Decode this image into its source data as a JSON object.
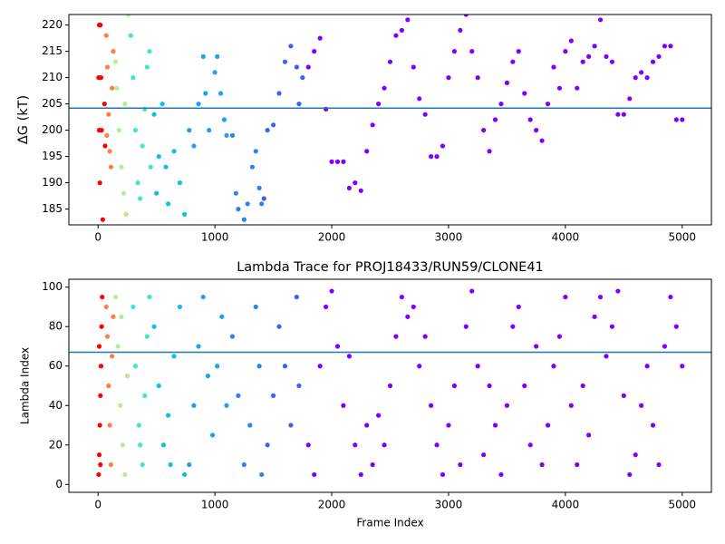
{
  "chart_data": [
    {
      "type": "scatter",
      "ylabel": "ΔG (kT)",
      "xlim": [
        -250,
        5250
      ],
      "xticks": [
        0,
        1000,
        2000,
        3000,
        4000,
        5000
      ],
      "ylim": [
        182,
        222
      ],
      "yticks": [
        185,
        190,
        195,
        200,
        205,
        210,
        215,
        220
      ],
      "hline": {
        "value": 204.2,
        "color": "#1f77b4"
      },
      "series": [
        {
          "color": "#ff0000",
          "x": [
            10,
            20,
            5,
            25,
            10,
            30,
            15,
            40,
            55,
            60
          ],
          "values": [
            220,
            220,
            210,
            210,
            200,
            200,
            190,
            183,
            205,
            197
          ]
        },
        {
          "color": "#ff7f40",
          "x": [
            70,
            80,
            90,
            100,
            110,
            120,
            130,
            75
          ],
          "values": [
            218,
            212,
            203,
            196,
            193,
            208,
            215,
            199
          ]
        },
        {
          "color": "#b0f090",
          "x": [
            150,
            160,
            180,
            200,
            220,
            240,
            260,
            230
          ],
          "values": [
            213,
            208,
            200,
            193,
            188,
            184,
            222,
            205
          ]
        },
        {
          "color": "#40e8c8",
          "x": [
            280,
            300,
            320,
            340,
            360,
            380,
            400,
            420,
            440,
            450
          ],
          "values": [
            218,
            210,
            200,
            190,
            187,
            197,
            204,
            212,
            215,
            193
          ]
        },
        {
          "color": "#10c0e0",
          "x": [
            480,
            500,
            520,
            550,
            580,
            600,
            650,
            700,
            740
          ],
          "values": [
            203,
            188,
            195,
            205,
            193,
            186,
            196,
            190,
            184
          ]
        },
        {
          "color": "#20a0f0",
          "x": [
            780,
            820,
            860,
            900,
            920,
            950,
            1000,
            1020,
            1050,
            1080,
            1100
          ],
          "values": [
            200,
            197,
            205,
            214,
            207,
            200,
            211,
            214,
            207,
            202,
            199
          ]
        },
        {
          "color": "#3080f0",
          "x": [
            1150,
            1180,
            1200,
            1250,
            1280,
            1320,
            1350,
            1380,
            1400
          ],
          "values": [
            199,
            188,
            185,
            183,
            186,
            193,
            196,
            189,
            186
          ]
        },
        {
          "color": "#4060f0",
          "x": [
            1420,
            1450,
            1500,
            1550,
            1600,
            1650,
            1700,
            1720,
            1750
          ],
          "values": [
            187,
            200,
            201,
            207,
            213,
            216,
            212,
            205,
            210
          ]
        },
        {
          "color": "#8000ff",
          "x": [
            1800,
            1850,
            1900,
            1950,
            2000,
            2050,
            2100,
            2150,
            2200,
            2250,
            2300,
            2350,
            2400,
            2450,
            2500,
            2550,
            2600,
            2650,
            2700,
            2750,
            2800,
            2850,
            2900,
            2950,
            3000,
            3050,
            3100,
            3150,
            3200,
            3250,
            3300,
            3350,
            3400,
            3450,
            3500,
            3550,
            3600,
            3650,
            3700,
            3750,
            3800,
            3850,
            3900,
            3950,
            4000,
            4050,
            4100,
            4150,
            4200,
            4250,
            4300,
            4350,
            4400,
            4450,
            4500,
            4550,
            4600,
            4650,
            4700,
            4750,
            4800,
            4850,
            4900,
            4950,
            5000
          ],
          "values": [
            212,
            215,
            217.5,
            204,
            194,
            194,
            194,
            189,
            190,
            188.5,
            196,
            201,
            205,
            208,
            213,
            218,
            219,
            221,
            212,
            206,
            203,
            195,
            195,
            197,
            210,
            215,
            219,
            222,
            215,
            210,
            200,
            196,
            202,
            205,
            209,
            213,
            215,
            207,
            202,
            200,
            198,
            205,
            212,
            208,
            215,
            217,
            208,
            213,
            214,
            216,
            221,
            214,
            213,
            203,
            203,
            206,
            210,
            211,
            210,
            213,
            214,
            216,
            216,
            202,
            202
          ]
        }
      ]
    },
    {
      "type": "scatter",
      "title": "Lambda Trace for PROJ18433/RUN59/CLONE41",
      "xlabel": "Frame Index",
      "ylabel": "Lambda Index",
      "xlim": [
        -250,
        5250
      ],
      "xticks": [
        0,
        1000,
        2000,
        3000,
        4000,
        5000
      ],
      "ylim": [
        -4,
        104
      ],
      "yticks": [
        0,
        20,
        40,
        60,
        80,
        100
      ],
      "hline": {
        "value": 67,
        "color": "#1f77b4"
      },
      "series": [
        {
          "color": "#ff0000",
          "x": [
            5,
            10,
            15,
            20,
            25,
            30,
            35,
            10,
            20
          ],
          "values": [
            5,
            15,
            30,
            45,
            60,
            80,
            95,
            70,
            10
          ]
        },
        {
          "color": "#ff7f40",
          "x": [
            70,
            80,
            90,
            100,
            110,
            120,
            130
          ],
          "values": [
            90,
            75,
            50,
            30,
            10,
            65,
            85
          ]
        },
        {
          "color": "#b0f090",
          "x": [
            150,
            170,
            190,
            210,
            230,
            250,
            200
          ],
          "values": [
            95,
            70,
            40,
            20,
            5,
            55,
            85
          ]
        },
        {
          "color": "#40e8c8",
          "x": [
            300,
            320,
            350,
            380,
            400,
            420,
            440,
            360
          ],
          "values": [
            90,
            60,
            30,
            10,
            45,
            75,
            95,
            20
          ]
        },
        {
          "color": "#10c0e0",
          "x": [
            480,
            520,
            560,
            600,
            650,
            700,
            740,
            620
          ],
          "values": [
            80,
            50,
            20,
            35,
            65,
            90,
            5,
            10
          ]
        },
        {
          "color": "#20a0f0",
          "x": [
            780,
            820,
            860,
            900,
            940,
            980,
            1020,
            1060,
            1100
          ],
          "values": [
            10,
            40,
            70,
            95,
            55,
            25,
            60,
            85,
            40
          ]
        },
        {
          "color": "#3080f0",
          "x": [
            1150,
            1200,
            1250,
            1300,
            1350,
            1400,
            1380
          ],
          "values": [
            75,
            45,
            10,
            30,
            90,
            5,
            60
          ]
        },
        {
          "color": "#4060f0",
          "x": [
            1450,
            1500,
            1550,
            1600,
            1650,
            1700,
            1720
          ],
          "values": [
            20,
            45,
            80,
            60,
            30,
            95,
            50
          ]
        },
        {
          "color": "#8000ff",
          "x": [
            1800,
            1850,
            1900,
            1950,
            2000,
            2050,
            2100,
            2150,
            2200,
            2250,
            2300,
            2350,
            2400,
            2450,
            2500,
            2550,
            2600,
            2650,
            2700,
            2750,
            2800,
            2850,
            2900,
            2950,
            3000,
            3050,
            3100,
            3150,
            3200,
            3250,
            3300,
            3350,
            3400,
            3450,
            3500,
            3550,
            3600,
            3650,
            3700,
            3750,
            3800,
            3850,
            3900,
            3950,
            4000,
            4050,
            4100,
            4150,
            4200,
            4250,
            4300,
            4350,
            4400,
            4450,
            4500,
            4550,
            4600,
            4650,
            4700,
            4750,
            4800,
            4850,
            4900,
            4950,
            5000
          ],
          "values": [
            20,
            5,
            60,
            90,
            98,
            70,
            40,
            65,
            20,
            5,
            30,
            10,
            35,
            20,
            50,
            75,
            95,
            85,
            90,
            60,
            75,
            40,
            20,
            5,
            30,
            50,
            10,
            80,
            98,
            60,
            15,
            50,
            30,
            5,
            40,
            80,
            90,
            50,
            20,
            70,
            10,
            30,
            60,
            75,
            95,
            40,
            10,
            50,
            25,
            85,
            95,
            65,
            80,
            98,
            45,
            5,
            15,
            40,
            60,
            30,
            10,
            70,
            95,
            80,
            60
          ]
        }
      ]
    }
  ]
}
